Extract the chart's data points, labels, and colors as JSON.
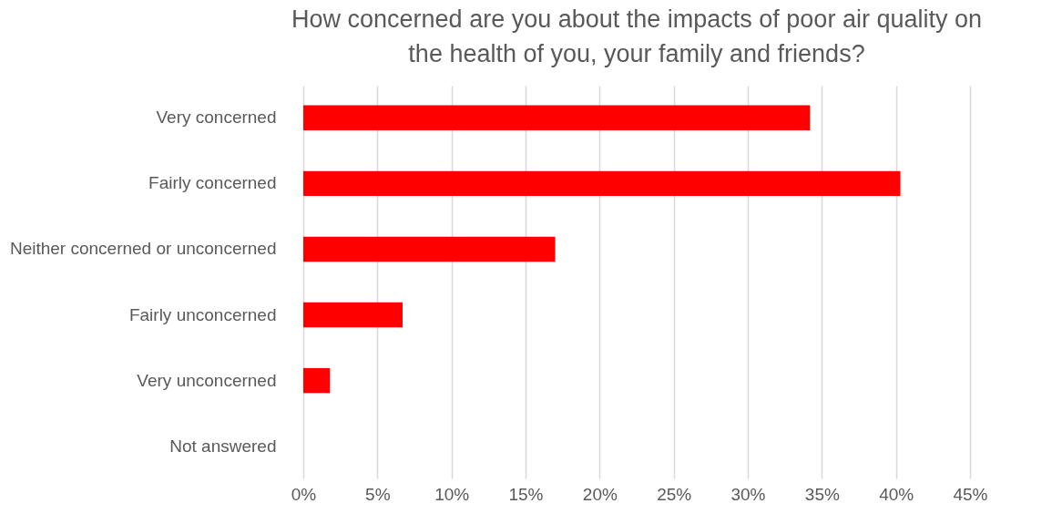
{
  "chart_data": {
    "type": "bar",
    "orientation": "horizontal",
    "title": "How concerned are you about the impacts of poor air quality on the health of you, your family and friends?",
    "categories": [
      "Very concerned",
      "Fairly concerned",
      "Neither concerned or unconcerned",
      "Fairly unconcerned",
      "Very unconcerned",
      "Not answered"
    ],
    "values": [
      34.2,
      40.3,
      17.0,
      6.7,
      1.8,
      0
    ],
    "color": "#ff0000",
    "xlim": [
      0,
      45
    ],
    "xticks": [
      {
        "value": 0,
        "label": "0%"
      },
      {
        "value": 5,
        "label": "5%"
      },
      {
        "value": 10,
        "label": "10%"
      },
      {
        "value": 15,
        "label": "15%"
      },
      {
        "value": 20,
        "label": "20%"
      },
      {
        "value": 25,
        "label": "25%"
      },
      {
        "value": 30,
        "label": "30%"
      },
      {
        "value": 35,
        "label": "35%"
      },
      {
        "value": 40,
        "label": "40%"
      },
      {
        "value": 45,
        "label": "45%"
      }
    ],
    "grid": "x"
  }
}
